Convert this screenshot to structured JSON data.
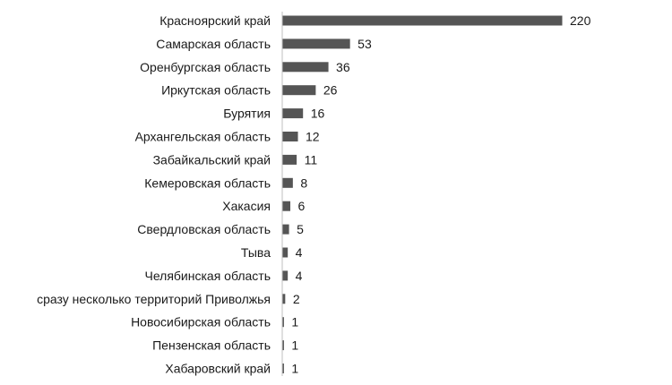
{
  "chart_data": {
    "type": "bar",
    "orientation": "horizontal",
    "title": "",
    "xlabel": "",
    "ylabel": "",
    "grid": false,
    "legend": "none",
    "bar_color": "#555555",
    "xlim": [
      0,
      220
    ],
    "categories": [
      "Красноярский край",
      "Самарская область",
      "Оренбургская область",
      "Иркутская область",
      "Бурятия",
      "Архангельская область",
      "Забайкальский край",
      "Кемеровская область",
      "Хакасия",
      "Свердловская область",
      "Тыва",
      "Челябинская область",
      "сразу несколько территорий Приволжья",
      "Новосибирская область",
      "Пензенская область",
      "Хабаровский край"
    ],
    "values": [
      220,
      53,
      36,
      26,
      16,
      12,
      11,
      8,
      6,
      5,
      4,
      4,
      2,
      1,
      1,
      1
    ]
  }
}
